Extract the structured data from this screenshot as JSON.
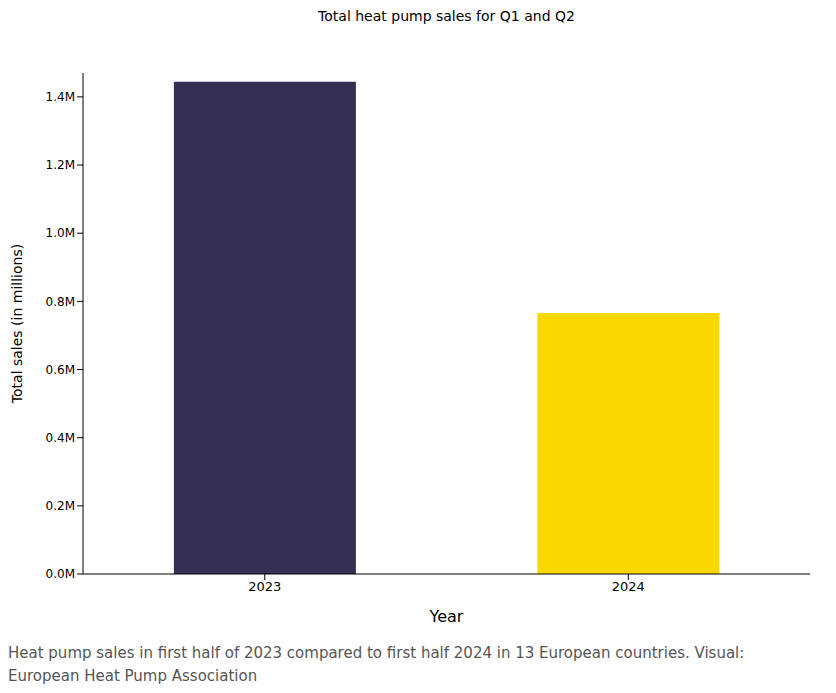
{
  "chart_data": {
    "type": "bar",
    "title": "Total heat pump sales for Q1 and Q2",
    "x_label": "Year",
    "y_label": "Total sales (in millions)",
    "categories": [
      "2023",
      "2024"
    ],
    "values": [
      1444000,
      766000
    ],
    "colors": [
      "#352f54",
      "#fdd700"
    ],
    "ylim": [
      0,
      1470000
    ],
    "yticks": [
      {
        "value": 0,
        "label": "0.0M"
      },
      {
        "value": 200000,
        "label": "0.2M"
      },
      {
        "value": 400000,
        "label": "0.4M"
      },
      {
        "value": 600000,
        "label": "0.6M"
      },
      {
        "value": 800000,
        "label": "0.8M"
      },
      {
        "value": 1000000,
        "label": "1.0M"
      },
      {
        "value": 1200000,
        "label": "1.2M"
      },
      {
        "value": 1400000,
        "label": "1.4M"
      }
    ],
    "grid": false,
    "caption": "Heat pump sales in first half of 2023 compared to first half 2024 in 13 European countries. Visual: European Heat Pump Association"
  }
}
